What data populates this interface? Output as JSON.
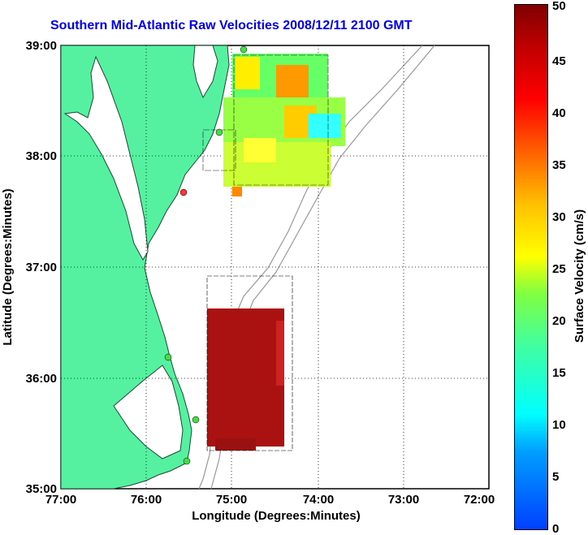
{
  "title": "Southern Mid-Atlantic Raw Velocities 2008/12/11 2100 GMT",
  "axes": {
    "xlabel": "Longitude (Degrees:Minutes)",
    "ylabel": "Latitude (Degrees:Minutes)",
    "x_ticks": [
      "77:00",
      "76:00",
      "75:00",
      "74:00",
      "73:00",
      "72:00"
    ],
    "y_ticks": [
      "39:00",
      "38:00",
      "37:00",
      "36:00",
      "35:00"
    ]
  },
  "colorbar": {
    "label": "Surface Velocity (cm/s)",
    "ticks": [
      "0",
      "5",
      "10",
      "15",
      "20",
      "25",
      "30",
      "35",
      "40",
      "45",
      "50"
    ],
    "range": [
      0,
      50
    ]
  },
  "colors": {
    "land": "#55f0a0",
    "water": "#ffffff",
    "title": "#0000ee",
    "site_marker": "#44dd44"
  }
}
